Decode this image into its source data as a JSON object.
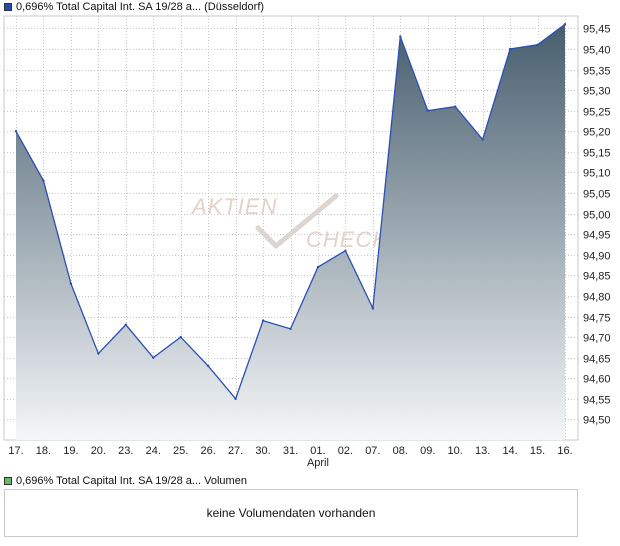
{
  "legend": {
    "main_label": "0,696% Total Capital Int. SA 19/28 a... (Düsseldorf)",
    "main_color": "#1f4fa8",
    "volume_label": "0,696% Total Capital Int. SA 19/28 a... Volumen",
    "volume_color": "#66bb66"
  },
  "watermark": {
    "line1": "Aktien",
    "line2": "Check",
    "icon": "checkmark-icon"
  },
  "volume_panel": {
    "message": "keine Volumendaten vorhanden"
  },
  "chart_data": {
    "type": "area",
    "title": "",
    "x_month_label": "April",
    "categories": [
      "17.",
      "18.",
      "19.",
      "20.",
      "23.",
      "24.",
      "25.",
      "26.",
      "27.",
      "30.",
      "31.",
      "01.",
      "02.",
      "07.",
      "08.",
      "09.",
      "10.",
      "13.",
      "14.",
      "15.",
      "16."
    ],
    "series": [
      {
        "name": "0,696% Total Capital Int. SA 19/28 a... (Düsseldorf)",
        "values": [
          95.2,
          95.08,
          94.83,
          94.66,
          94.73,
          94.65,
          94.7,
          94.63,
          94.55,
          94.74,
          94.72,
          94.87,
          94.91,
          94.77,
          95.43,
          95.25,
          95.26,
          95.18,
          95.4,
          95.41,
          95.46
        ]
      }
    ],
    "yticks": [
      "95,45",
      "95,40",
      "95,35",
      "95,30",
      "95,25",
      "95,20",
      "95,15",
      "95,10",
      "95,05",
      "95,00",
      "94,95",
      "94,90",
      "94,85",
      "94,80",
      "94,75",
      "94,70",
      "94,65",
      "94,60",
      "94,55",
      "94,50"
    ],
    "ylim": [
      94.45,
      95.48
    ],
    "grid": true,
    "colors": {
      "line": "#2a4fb5",
      "fill_top": "#3d5566",
      "fill_bottom": "#f4f6f8",
      "grid": "#c8c8c8"
    }
  }
}
